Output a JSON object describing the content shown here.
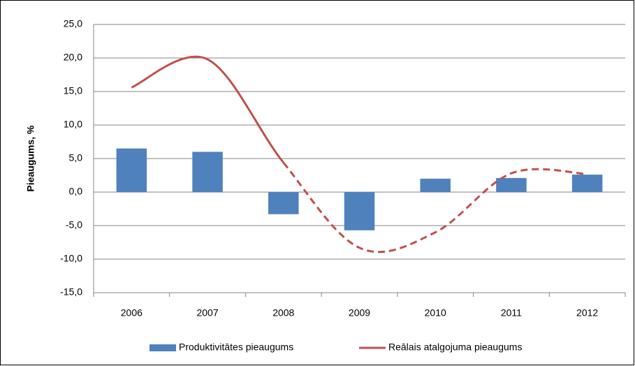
{
  "chart_data": {
    "type": "bar-line",
    "y_label": "Pieaugums, %",
    "categories": [
      "2006",
      "2007",
      "2008",
      "2009",
      "2010",
      "2011",
      "2012"
    ],
    "series": [
      {
        "name": "Produktivitātes pieaugums",
        "type": "bar",
        "color": "#4f81bd",
        "values": [
          6.5,
          6.0,
          -3.3,
          -5.7,
          2.0,
          2.1,
          2.6
        ]
      },
      {
        "name": "Reālais atalgojuma pieaugums",
        "type": "line",
        "color": "#c0504d",
        "smooth": true,
        "dashed_from": 2,
        "values": [
          15.6,
          19.8,
          4.4,
          -8.3,
          -6.0,
          2.8,
          2.7
        ]
      }
    ],
    "ylim": [
      -15,
      25
    ],
    "yticks": [
      {
        "value": -15,
        "label": "-15,0"
      },
      {
        "value": -10,
        "label": "-10,0"
      },
      {
        "value": -5,
        "label": "-5,0"
      },
      {
        "value": 0,
        "label": "0,0"
      },
      {
        "value": 5,
        "label": "5,0"
      },
      {
        "value": 10,
        "label": "10,0"
      },
      {
        "value": 15,
        "label": "15,0"
      },
      {
        "value": 20,
        "label": "20,0"
      },
      {
        "value": 25,
        "label": "25,0"
      }
    ],
    "grid": true,
    "legend": "bottom"
  }
}
